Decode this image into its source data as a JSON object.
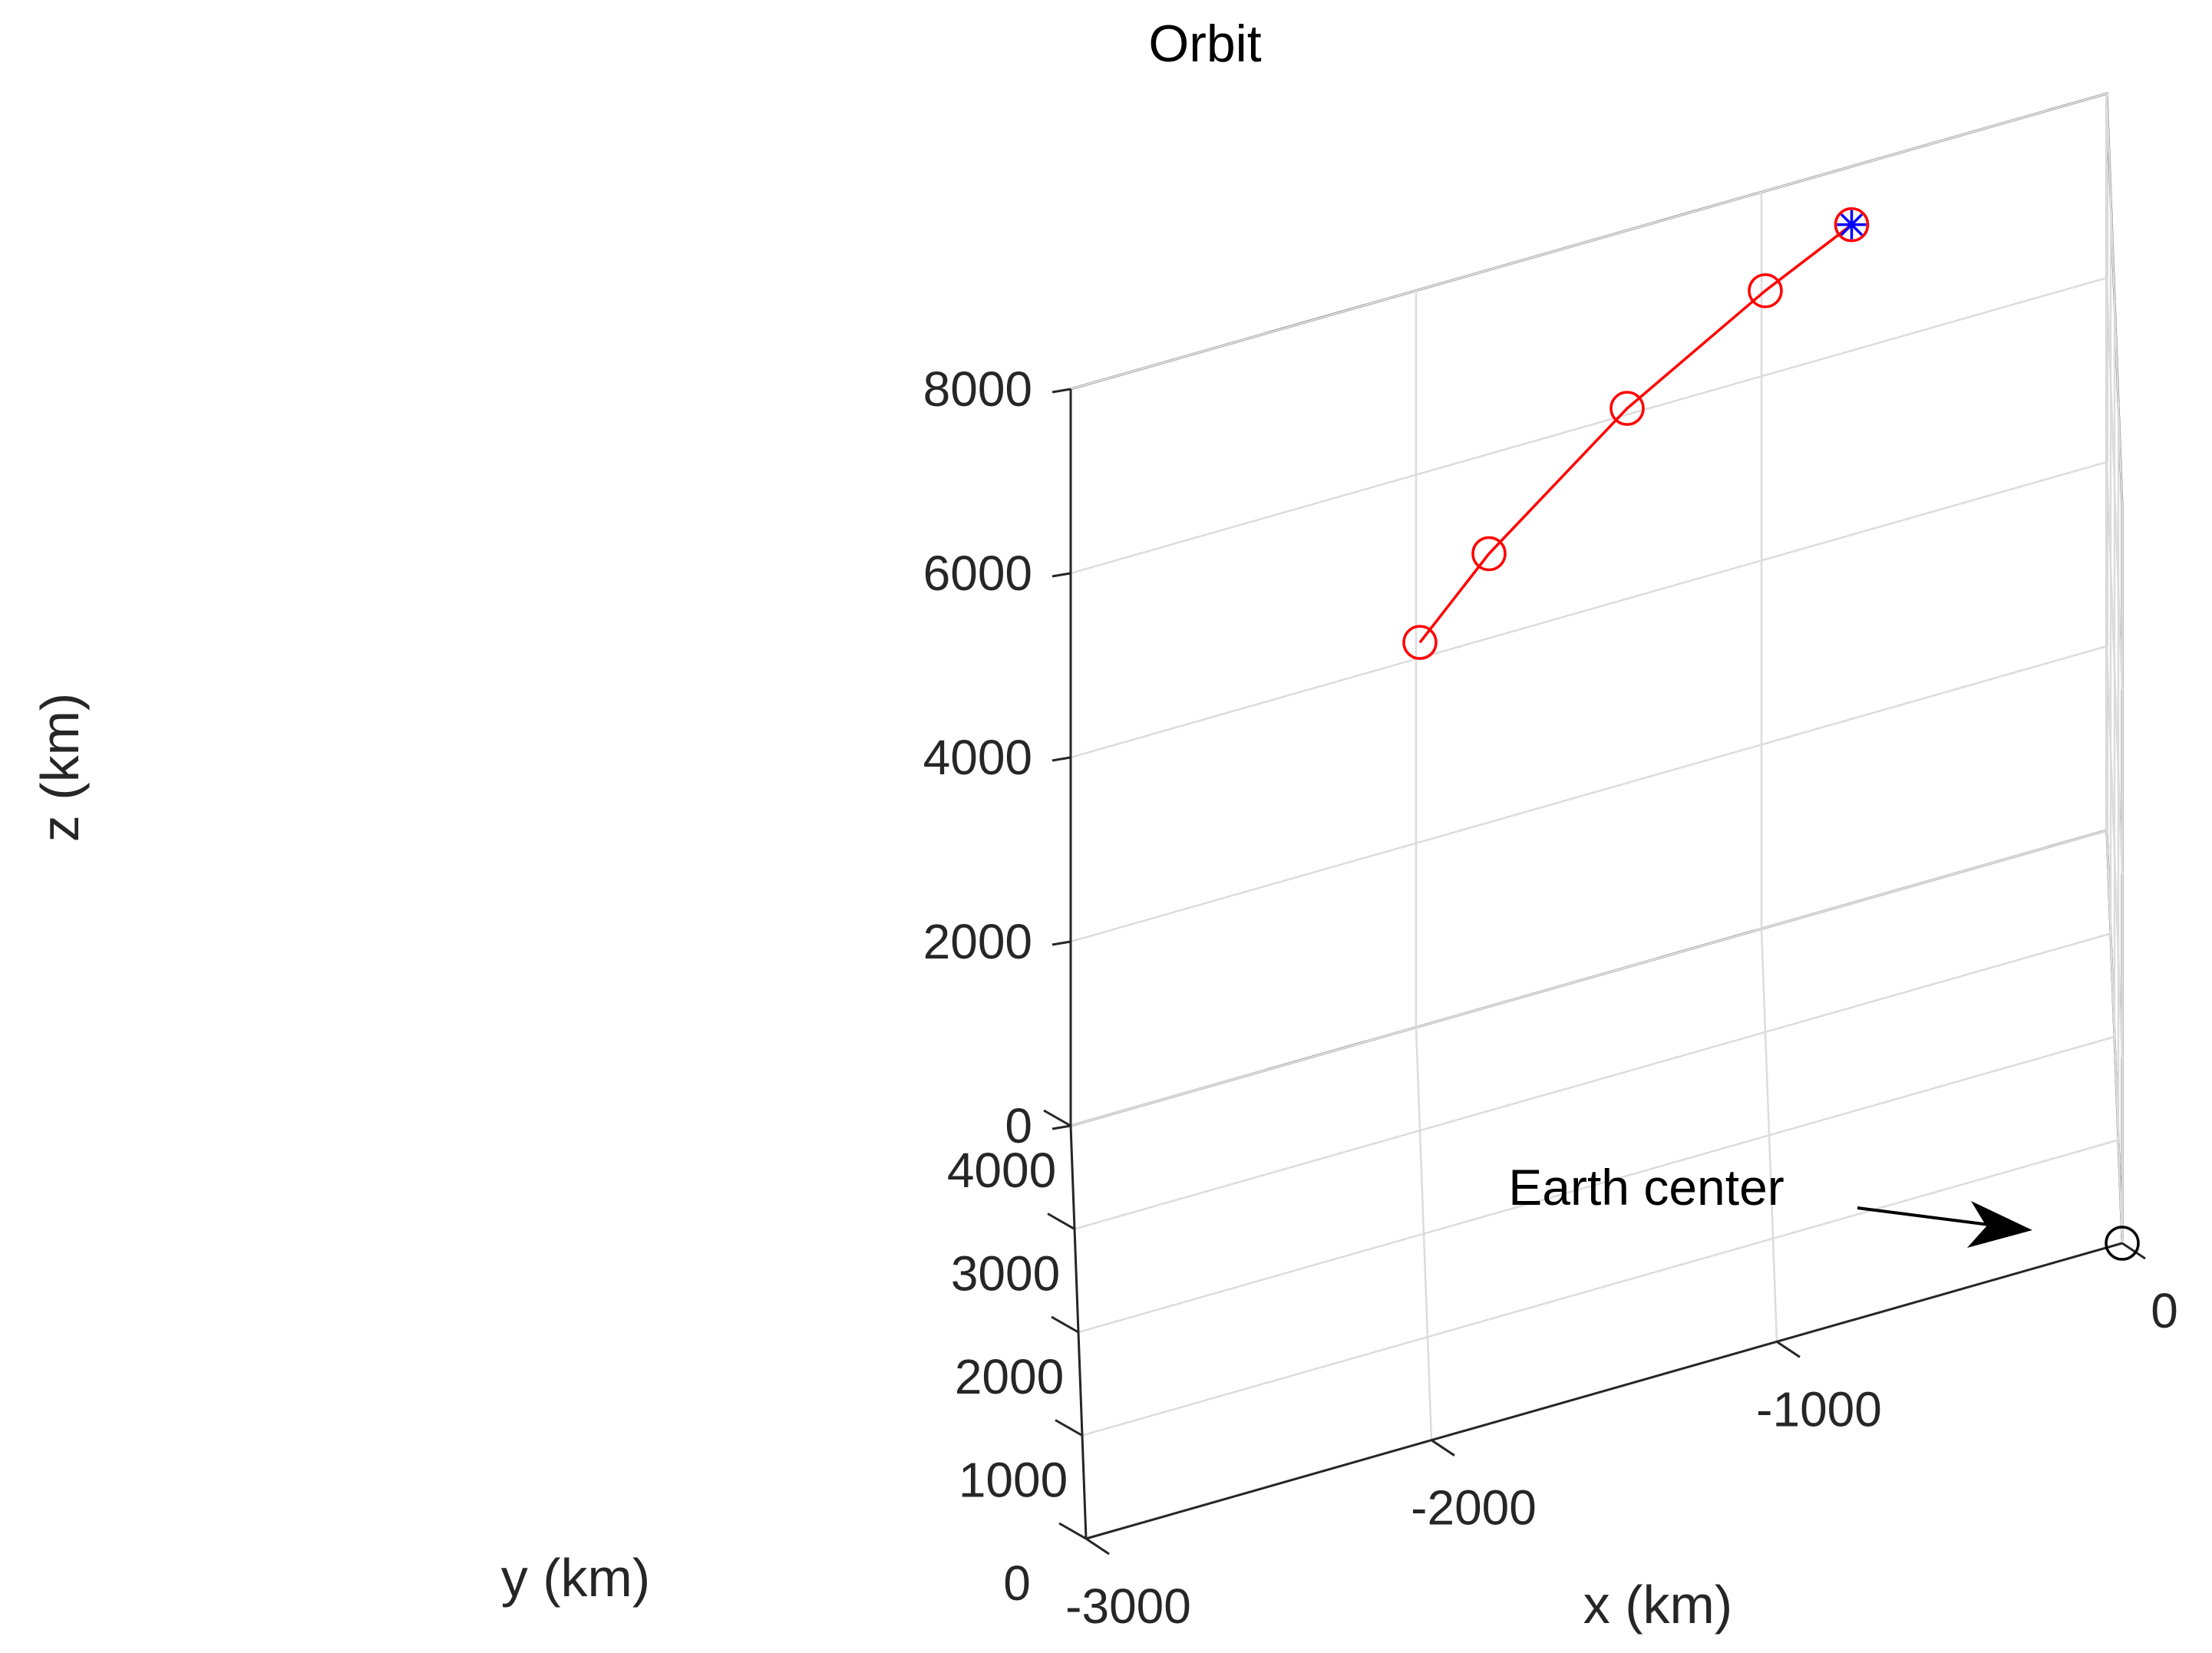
{
  "chart_data": {
    "type": "scatter3d-line",
    "title": "Orbit",
    "xlabel": "x (km)",
    "ylabel": "y (km)",
    "zlabel": "z (km)",
    "xlim": [
      -3000,
      0
    ],
    "ylim": [
      0,
      4000
    ],
    "zlim": [
      0,
      8000
    ],
    "x_ticks": [
      {
        "value": -3000,
        "label": "-3000"
      },
      {
        "value": -2000,
        "label": "-2000"
      },
      {
        "value": -1000,
        "label": "-1000"
      },
      {
        "value": 0,
        "label": "0"
      }
    ],
    "y_ticks": [
      {
        "value": 0,
        "label": "0"
      },
      {
        "value": 1000,
        "label": "1000"
      },
      {
        "value": 2000,
        "label": "2000"
      },
      {
        "value": 3000,
        "label": "3000"
      },
      {
        "value": 4000,
        "label": "4000"
      }
    ],
    "z_ticks": [
      {
        "value": 0,
        "label": "0"
      },
      {
        "value": 2000,
        "label": "2000"
      },
      {
        "value": 4000,
        "label": "4000"
      },
      {
        "value": 6000,
        "label": "6000"
      },
      {
        "value": 8000,
        "label": "8000"
      }
    ],
    "grid": true,
    "series": [
      {
        "color": "#ff0000",
        "marker": "circle",
        "line": true,
        "points": [
          {
            "x": -2000,
            "y": 3000,
            "z": 5300
          },
          {
            "x": -1800,
            "y": 3000,
            "z": 6050
          },
          {
            "x": -1400,
            "y": 3000,
            "z": 7200
          },
          {
            "x": -1000,
            "y": 3000,
            "z": 8050
          },
          {
            "x": -750,
            "y": 3000,
            "z": 8500
          }
        ]
      },
      {
        "color": "#0000ff",
        "marker": "asterisk",
        "line": false,
        "points": [
          {
            "x": -750,
            "y": 3000,
            "z": 8500
          }
        ]
      },
      {
        "color": "#000000",
        "marker": "circle",
        "line": false,
        "points": [
          {
            "x": 0,
            "y": 0,
            "z": 0
          }
        ]
      }
    ],
    "annotations": [
      {
        "text": "Earth center",
        "target": {
          "x": 0,
          "y": 0,
          "z": 0
        },
        "arrow": true
      }
    ]
  }
}
